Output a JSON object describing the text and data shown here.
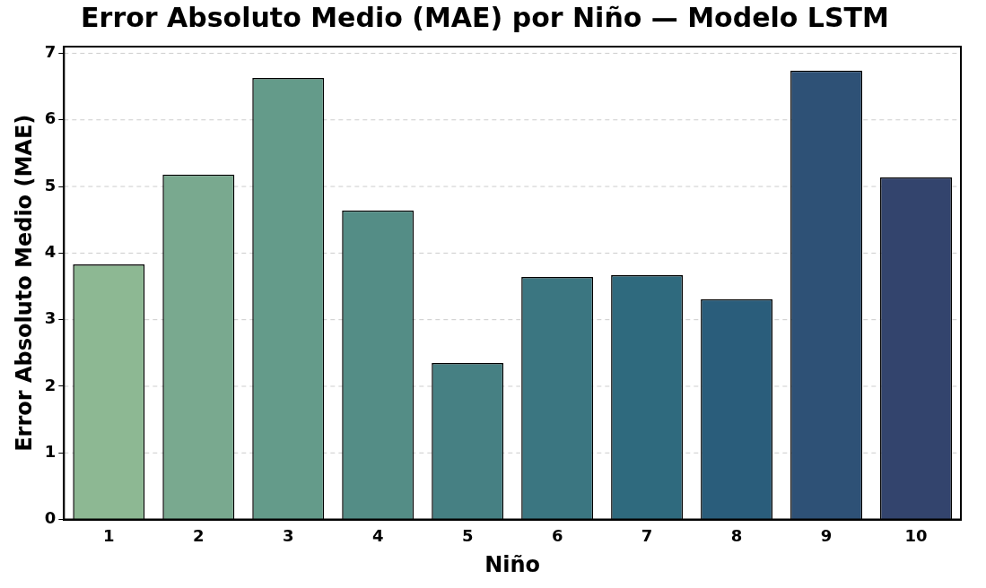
{
  "chart_data": {
    "type": "bar",
    "title": "Error Absoluto Medio (MAE) por Niño — Modelo LSTM",
    "xlabel": "Niño",
    "ylabel": "Error Absoluto Medio (MAE)",
    "categories": [
      "1",
      "2",
      "3",
      "4",
      "5",
      "6",
      "7",
      "8",
      "9",
      "10"
    ],
    "values": [
      3.83,
      5.18,
      6.63,
      4.64,
      2.35,
      3.64,
      3.67,
      3.31,
      6.74,
      5.14
    ],
    "colors": [
      "#8db893",
      "#79a98f",
      "#649b8a",
      "#548d86",
      "#468083",
      "#3b7681",
      "#2f6a7e",
      "#2a5d7b",
      "#2e5176",
      "#33446d"
    ],
    "ylim": [
      0,
      7.1
    ],
    "yticks": [
      0,
      1,
      2,
      3,
      4,
      5,
      6,
      7
    ],
    "grid": "y"
  }
}
